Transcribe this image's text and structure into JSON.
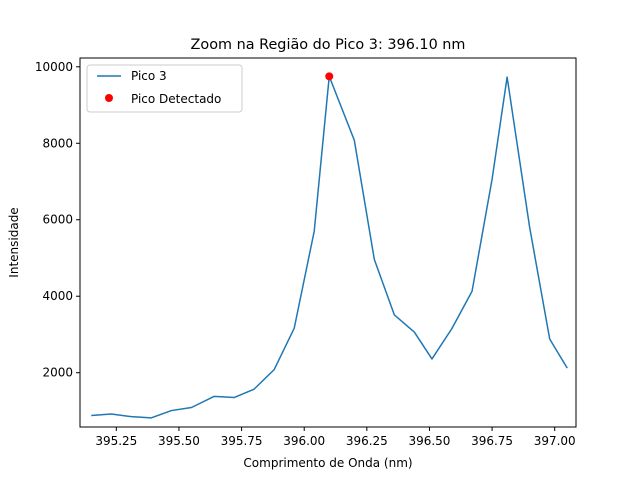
{
  "chart_data": {
    "type": "line",
    "title": "Zoom na Região do Pico 3: 396.10 nm",
    "xlabel": "Comprimento de Onda (nm)",
    "ylabel": "Intensidade",
    "xlim": [
      395.105,
      397.085
    ],
    "ylim": [
      580,
      10230
    ],
    "xticks": [
      395.25,
      395.5,
      395.75,
      396.0,
      396.25,
      396.5,
      396.75,
      397.0
    ],
    "xtick_labels": [
      "395.25",
      "395.50",
      "395.75",
      "396.00",
      "396.25",
      "396.50",
      "396.75",
      "397.00"
    ],
    "yticks": [
      2000,
      4000,
      6000,
      8000,
      10000
    ],
    "ytick_labels": [
      "2000",
      "4000",
      "6000",
      "8000",
      "10000"
    ],
    "grid": false,
    "legend_position": "top-left",
    "series": [
      {
        "name": "Pico 3",
        "kind": "line",
        "color": "#1f77b4",
        "x": [
          395.15,
          395.23,
          395.31,
          395.39,
          395.47,
          395.55,
          395.64,
          395.72,
          395.8,
          395.88,
          395.96,
          396.04,
          396.1,
          396.2,
          396.28,
          396.36,
          396.44,
          396.51,
          396.59,
          396.67,
          396.75,
          396.81,
          396.9,
          396.98,
          397.05
        ],
        "y": [
          880,
          920,
          850,
          820,
          1010,
          1090,
          1380,
          1350,
          1570,
          2080,
          3160,
          5700,
          9750,
          8080,
          4960,
          3510,
          3060,
          2360,
          3160,
          4130,
          7060,
          9730,
          5800,
          2880,
          2120
        ]
      },
      {
        "name": "Pico Detectado",
        "kind": "scatter",
        "color": "#ff0000",
        "x": [
          396.1
        ],
        "y": [
          9750
        ]
      }
    ]
  }
}
